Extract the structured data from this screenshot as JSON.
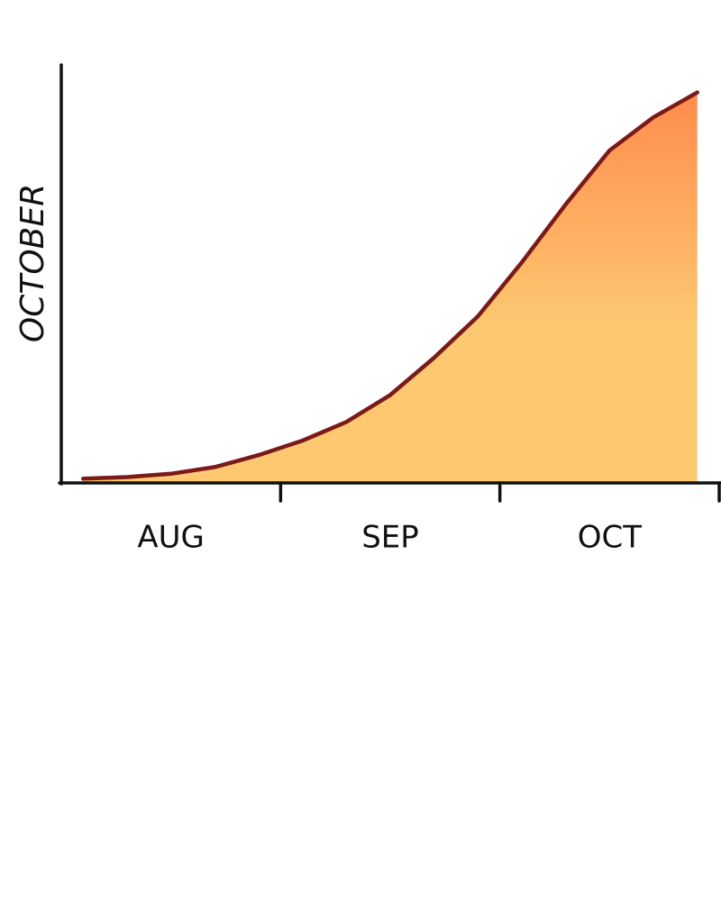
{
  "chart_data": {
    "type": "area",
    "y_label": "OCTOBER",
    "categories": [
      null,
      null,
      "AUG",
      null,
      null,
      null,
      null,
      "SEP",
      null,
      null,
      null,
      null,
      "OCT",
      null,
      null
    ],
    "values": [
      0.8,
      1.2,
      2,
      3.6,
      6.5,
      10,
      14.5,
      21,
      30,
      40,
      53,
      67,
      80,
      88,
      94
    ],
    "ylim": [
      0,
      100
    ],
    "line_color": "#7a1a1a",
    "fill_top_color": "#ff8c4d",
    "fill_bottom_color": "#fdc870"
  }
}
